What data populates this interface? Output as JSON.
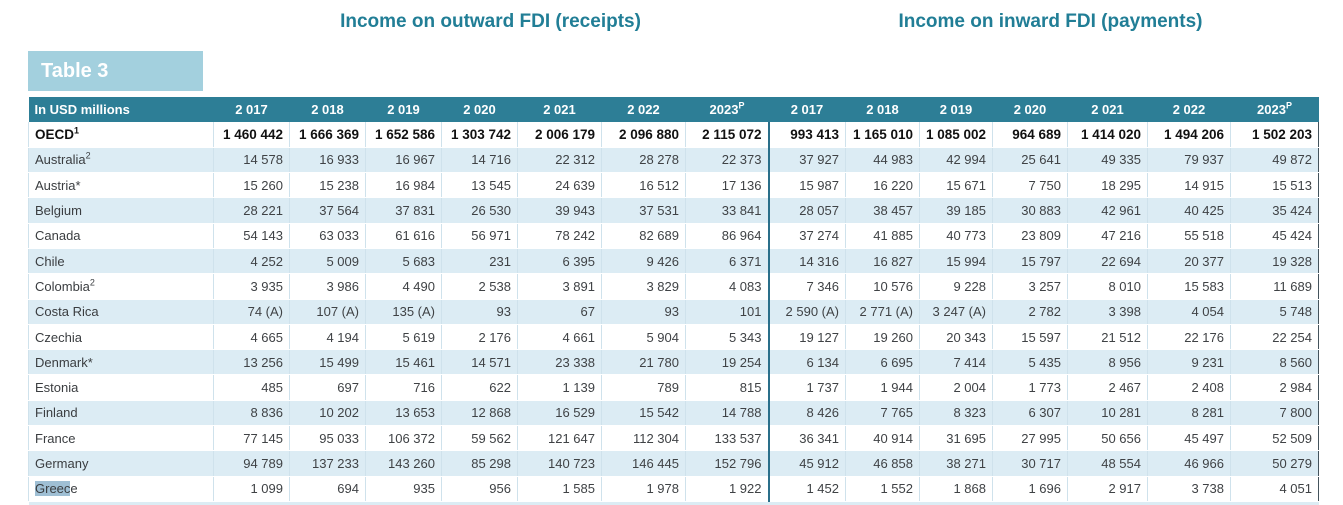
{
  "titles": {
    "outward": "Income on outward FDI (receipts)",
    "inward": "Income on inward FDI (payments)"
  },
  "table_label": "Table 3",
  "unit_label": "In USD millions",
  "year_headers": [
    {
      "text": "2 017",
      "sup": ""
    },
    {
      "text": "2 018",
      "sup": ""
    },
    {
      "text": "2 019",
      "sup": ""
    },
    {
      "text": "2 020",
      "sup": ""
    },
    {
      "text": "2 021",
      "sup": ""
    },
    {
      "text": "2 022",
      "sup": ""
    },
    {
      "text": "2023",
      "sup": "P"
    }
  ],
  "colors": {
    "header_teal": "#2d7e96",
    "title_teal": "#217e96",
    "tab_blue": "#a3d0de",
    "row_alt_blue": "#dcecf4",
    "section_divider": "#2a6f8a",
    "selection_highlight": "#9fbfd4"
  },
  "rows": [
    {
      "label": "OECD",
      "sup": "1",
      "style": "total",
      "outward": [
        "1 460 442",
        "1 666 369",
        "1 652 586",
        "1 303 742",
        "2 006 179",
        "2 096 880",
        "2 115 072"
      ],
      "inward": [
        "993 413",
        "1 165 010",
        "1 085 002",
        "964 689",
        "1 414 020",
        "1 494 206",
        "1 502 203"
      ]
    },
    {
      "label": "Australia",
      "sup": "2",
      "outward": [
        "14 578",
        "16 933",
        "16 967",
        "14 716",
        "22 312",
        "28 278",
        "22 373"
      ],
      "inward": [
        "37 927",
        "44 983",
        "42 994",
        "25 641",
        "49 335",
        "79 937",
        "49 872"
      ]
    },
    {
      "label": "Austria*",
      "sup": "",
      "outward": [
        "15 260",
        "15 238",
        "16 984",
        "13 545",
        "24 639",
        "16 512",
        "17 136"
      ],
      "inward": [
        "15 987",
        "16 220",
        "15 671",
        "7 750",
        "18 295",
        "14 915",
        "15 513"
      ]
    },
    {
      "label": "Belgium",
      "sup": "",
      "outward": [
        "28 221",
        "37 564",
        "37 831",
        "26 530",
        "39 943",
        "37 531",
        "33 841"
      ],
      "inward": [
        "28 057",
        "38 457",
        "39 185",
        "30 883",
        "42 961",
        "40 425",
        "35 424"
      ]
    },
    {
      "label": "Canada",
      "sup": "",
      "outward": [
        "54 143",
        "63 033",
        "61 616",
        "56 971",
        "78 242",
        "82 689",
        "86 964"
      ],
      "inward": [
        "37 274",
        "41 885",
        "40 773",
        "23 809",
        "47 216",
        "55 518",
        "45 424"
      ]
    },
    {
      "label": "Chile",
      "sup": "",
      "outward": [
        "4 252",
        "5 009",
        "5 683",
        "231",
        "6 395",
        "9 426",
        "6 371"
      ],
      "inward": [
        "14 316",
        "16 827",
        "15 994",
        "15 797",
        "22 694",
        "20 377",
        "19 328"
      ]
    },
    {
      "label": "Colombia",
      "sup": "2",
      "outward": [
        "3 935",
        "3 986",
        "4 490",
        "2 538",
        "3 891",
        "3 829",
        "4 083"
      ],
      "inward": [
        "7 346",
        "10 576",
        "9 228",
        "3 257",
        "8 010",
        "15 583",
        "11 689"
      ]
    },
    {
      "label": "Costa Rica",
      "sup": "",
      "outward": [
        "74 (A)",
        "107 (A)",
        "135 (A)",
        "93",
        "67",
        "93",
        "101"
      ],
      "inward": [
        "2 590 (A)",
        "2 771 (A)",
        "3 247 (A)",
        "2 782",
        "3 398",
        "4 054",
        "5 748"
      ]
    },
    {
      "label": "Czechia",
      "sup": "",
      "outward": [
        "4 665",
        "4 194",
        "5 619",
        "2 176",
        "4 661",
        "5 904",
        "5 343"
      ],
      "inward": [
        "19 127",
        "19 260",
        "20 343",
        "15 597",
        "21 512",
        "22 176",
        "22 254"
      ]
    },
    {
      "label": "Denmark*",
      "sup": "",
      "outward": [
        "13 256",
        "15 499",
        "15 461",
        "14 571",
        "23 338",
        "21 780",
        "19 254"
      ],
      "inward": [
        "6 134",
        "6 695",
        "7 414",
        "5 435",
        "8 956",
        "9 231",
        "8 560"
      ]
    },
    {
      "label": "Estonia",
      "sup": "",
      "outward": [
        "485",
        "697",
        "716",
        "622",
        "1 139",
        "789",
        "815"
      ],
      "inward": [
        "1 737",
        "1 944",
        "2 004",
        "1 773",
        "2 467",
        "2 408",
        "2 984"
      ]
    },
    {
      "label": "Finland",
      "sup": "",
      "outward": [
        "8 836",
        "10 202",
        "13 653",
        "12 868",
        "16 529",
        "15 542",
        "14 788"
      ],
      "inward": [
        "8 426",
        "7 765",
        "8 323",
        "6 307",
        "10 281",
        "8 281",
        "7 800"
      ]
    },
    {
      "label": "France",
      "sup": "",
      "outward": [
        "77 145",
        "95 033",
        "106 372",
        "59 562",
        "121 647",
        "112 304",
        "133 537"
      ],
      "inward": [
        "36 341",
        "40 914",
        "31 695",
        "27 995",
        "50 656",
        "45 497",
        "52 509"
      ]
    },
    {
      "label": "Germany",
      "sup": "",
      "outward": [
        "94 789",
        "137 233",
        "143 260",
        "85 298",
        "140 723",
        "146 445",
        "152 796"
      ],
      "inward": [
        "45 912",
        "46 858",
        "38 271",
        "30 717",
        "48 554",
        "46 966",
        "50 279"
      ]
    },
    {
      "label": "Greece",
      "sup": "",
      "label_selection": {
        "selected": "Greec",
        "rest": "e"
      },
      "outward": [
        "1 099",
        "694",
        "935",
        "956",
        "1 585",
        "1 978",
        "1 922"
      ],
      "inward": [
        "1 452",
        "1 552",
        "1 868",
        "1 696",
        "2 917",
        "3 738",
        "4 051"
      ]
    }
  ]
}
